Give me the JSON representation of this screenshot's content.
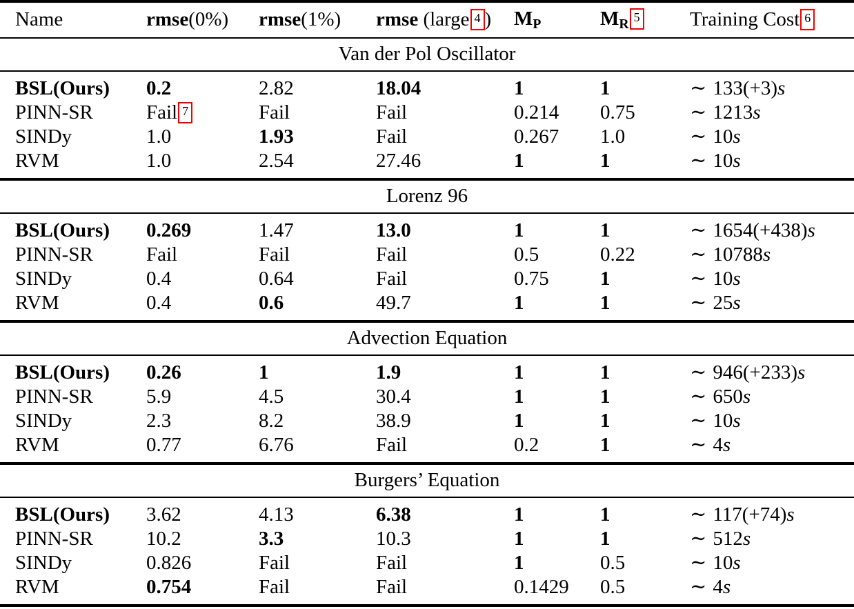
{
  "page": {
    "background": "#ffffff",
    "text_color": "#000000",
    "footnote_box_color": "#f00000"
  },
  "header": {
    "name": "Name",
    "rmse0": {
      "bold": "rmse",
      "rest": "(0%)"
    },
    "rmse1": {
      "bold": "rmse",
      "rest": "(1%)"
    },
    "rmse_large": {
      "bold": "rmse",
      "rest_open": " (large",
      "footnote": "4",
      "rest_close": ")"
    },
    "mp": {
      "base": "M",
      "sub": "P"
    },
    "mr": {
      "base": "M",
      "sub": "R",
      "footnote": "5"
    },
    "training_cost": {
      "label": "Training Cost",
      "footnote": "6"
    }
  },
  "sections": [
    {
      "title": "Van der Pol Oscillator",
      "rows": [
        {
          "name": {
            "text": "BSL(Ours)",
            "bold": true
          },
          "cells": [
            {
              "text": "0.2",
              "bold": true
            },
            {
              "text": "2.82"
            },
            {
              "text": "18.04",
              "bold": true
            },
            {
              "text": "1",
              "bold": true
            },
            {
              "text": "1",
              "bold": true
            }
          ],
          "cost": {
            "approx": "∼",
            "value": "133(+3)",
            "unit": "s"
          }
        },
        {
          "name": {
            "text": "PINN-SR"
          },
          "cells": [
            {
              "text": "Fail",
              "footnote": "7"
            },
            {
              "text": "Fail"
            },
            {
              "text": "Fail"
            },
            {
              "text": "0.214"
            },
            {
              "text": "0.75"
            }
          ],
          "cost": {
            "approx": "∼",
            "value": "1213",
            "unit": "s"
          }
        },
        {
          "name": {
            "text": "SINDy"
          },
          "cells": [
            {
              "text": "1.0"
            },
            {
              "text": "1.93",
              "bold": true
            },
            {
              "text": "Fail"
            },
            {
              "text": "0.267"
            },
            {
              "text": "1.0"
            }
          ],
          "cost": {
            "approx": "∼",
            "value": "10",
            "unit": "s"
          }
        },
        {
          "name": {
            "text": "RVM"
          },
          "cells": [
            {
              "text": "1.0"
            },
            {
              "text": "2.54"
            },
            {
              "text": "27.46"
            },
            {
              "text": "1",
              "bold": true
            },
            {
              "text": "1",
              "bold": true
            }
          ],
          "cost": {
            "approx": "∼",
            "value": "10",
            "unit": "s"
          }
        }
      ]
    },
    {
      "title": "Lorenz 96",
      "rows": [
        {
          "name": {
            "text": "BSL(Ours)",
            "bold": true
          },
          "cells": [
            {
              "text": "0.269",
              "bold": true
            },
            {
              "text": "1.47"
            },
            {
              "text": "13.0",
              "bold": true
            },
            {
              "text": "1",
              "bold": true
            },
            {
              "text": "1",
              "bold": true
            }
          ],
          "cost": {
            "approx": "∼",
            "value": "1654(+438)",
            "unit": "s"
          }
        },
        {
          "name": {
            "text": "PINN-SR"
          },
          "cells": [
            {
              "text": "Fail"
            },
            {
              "text": "Fail"
            },
            {
              "text": "Fail"
            },
            {
              "text": "0.5"
            },
            {
              "text": "0.22"
            }
          ],
          "cost": {
            "approx": "∼",
            "value": "10788",
            "unit": "s"
          }
        },
        {
          "name": {
            "text": "SINDy"
          },
          "cells": [
            {
              "text": "0.4"
            },
            {
              "text": "0.64"
            },
            {
              "text": "Fail"
            },
            {
              "text": "0.75"
            },
            {
              "text": "1",
              "bold": true
            }
          ],
          "cost": {
            "approx": "∼",
            "value": "10",
            "unit": "s"
          }
        },
        {
          "name": {
            "text": "RVM"
          },
          "cells": [
            {
              "text": "0.4"
            },
            {
              "text": "0.6",
              "bold": true
            },
            {
              "text": "49.7"
            },
            {
              "text": "1",
              "bold": true
            },
            {
              "text": "1",
              "bold": true
            }
          ],
          "cost": {
            "approx": "∼",
            "value": "25",
            "unit": "s"
          }
        }
      ]
    },
    {
      "title": "Advection Equation",
      "rows": [
        {
          "name": {
            "text": "BSL(Ours)",
            "bold": true
          },
          "cells": [
            {
              "text": "0.26",
              "bold": true
            },
            {
              "text": "1",
              "bold": true
            },
            {
              "text": "1.9",
              "bold": true
            },
            {
              "text": "1",
              "bold": true
            },
            {
              "text": "1",
              "bold": true
            }
          ],
          "cost": {
            "approx": "∼",
            "value": "946(+233)",
            "unit": "s"
          }
        },
        {
          "name": {
            "text": "PINN-SR"
          },
          "cells": [
            {
              "text": "5.9"
            },
            {
              "text": "4.5"
            },
            {
              "text": "30.4"
            },
            {
              "text": "1",
              "bold": true
            },
            {
              "text": "1",
              "bold": true
            }
          ],
          "cost": {
            "approx": "∼",
            "value": "650",
            "unit": "s"
          }
        },
        {
          "name": {
            "text": "SINDy"
          },
          "cells": [
            {
              "text": "2.3"
            },
            {
              "text": "8.2"
            },
            {
              "text": "38.9"
            },
            {
              "text": "1",
              "bold": true
            },
            {
              "text": "1",
              "bold": true
            }
          ],
          "cost": {
            "approx": "∼",
            "value": "10",
            "unit": "s"
          }
        },
        {
          "name": {
            "text": "RVM"
          },
          "cells": [
            {
              "text": "0.77"
            },
            {
              "text": "6.76"
            },
            {
              "text": "Fail"
            },
            {
              "text": "0.2"
            },
            {
              "text": "1",
              "bold": true
            }
          ],
          "cost": {
            "approx": "∼",
            "value": "4",
            "unit": "s"
          }
        }
      ]
    },
    {
      "title": "Burgers’ Equation",
      "rows": [
        {
          "name": {
            "text": "BSL(Ours)",
            "bold": true
          },
          "cells": [
            {
              "text": "3.62"
            },
            {
              "text": "4.13"
            },
            {
              "text": "6.38",
              "bold": true
            },
            {
              "text": "1",
              "bold": true
            },
            {
              "text": "1",
              "bold": true
            }
          ],
          "cost": {
            "approx": "∼",
            "value": "117(+74)",
            "unit": "s"
          }
        },
        {
          "name": {
            "text": "PINN-SR"
          },
          "cells": [
            {
              "text": "10.2"
            },
            {
              "text": "3.3",
              "bold": true
            },
            {
              "text": "10.3"
            },
            {
              "text": "1",
              "bold": true
            },
            {
              "text": "1",
              "bold": true
            }
          ],
          "cost": {
            "approx": "∼",
            "value": "512",
            "unit": "s"
          }
        },
        {
          "name": {
            "text": "SINDy"
          },
          "cells": [
            {
              "text": "0.826"
            },
            {
              "text": "Fail"
            },
            {
              "text": "Fail"
            },
            {
              "text": "1",
              "bold": true
            },
            {
              "text": "0.5"
            }
          ],
          "cost": {
            "approx": "∼",
            "value": "10",
            "unit": "s"
          }
        },
        {
          "name": {
            "text": "RVM"
          },
          "cells": [
            {
              "text": "0.754",
              "bold": true
            },
            {
              "text": "Fail"
            },
            {
              "text": "Fail"
            },
            {
              "text": "0.1429"
            },
            {
              "text": "0.5"
            }
          ],
          "cost": {
            "approx": "∼",
            "value": "4",
            "unit": "s"
          }
        }
      ]
    }
  ]
}
